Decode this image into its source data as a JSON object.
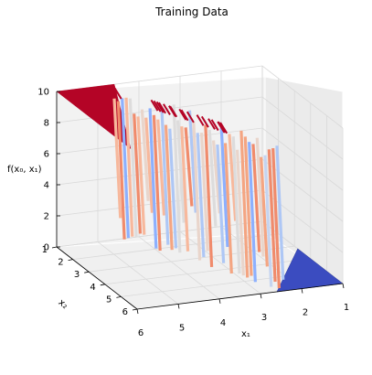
{
  "chart_data": {
    "type": "surface3d",
    "title": "Training Data",
    "xlabel": "x₁",
    "ylabel": "x₂",
    "zlabel": "f(x₀, x₁)",
    "x_ticks": [
      "6",
      "5",
      "4",
      "3",
      "2",
      "1"
    ],
    "y_ticks": [
      "1",
      "2",
      "3",
      "4",
      "5",
      "6"
    ],
    "z_ticks": [
      "0",
      "2",
      "4",
      "6",
      "8",
      "10"
    ],
    "x_range": [
      1,
      6
    ],
    "y_range": [
      1,
      6
    ],
    "z_range": [
      0,
      10
    ],
    "grid": true,
    "colormap": "coolwarm",
    "colors": {
      "high": "#b40426",
      "mid": "#dddcdc",
      "low": "#3b4cc0"
    },
    "surface_description_levels": {
      "plateau_high": 10,
      "plateau_low": 0
    }
  }
}
